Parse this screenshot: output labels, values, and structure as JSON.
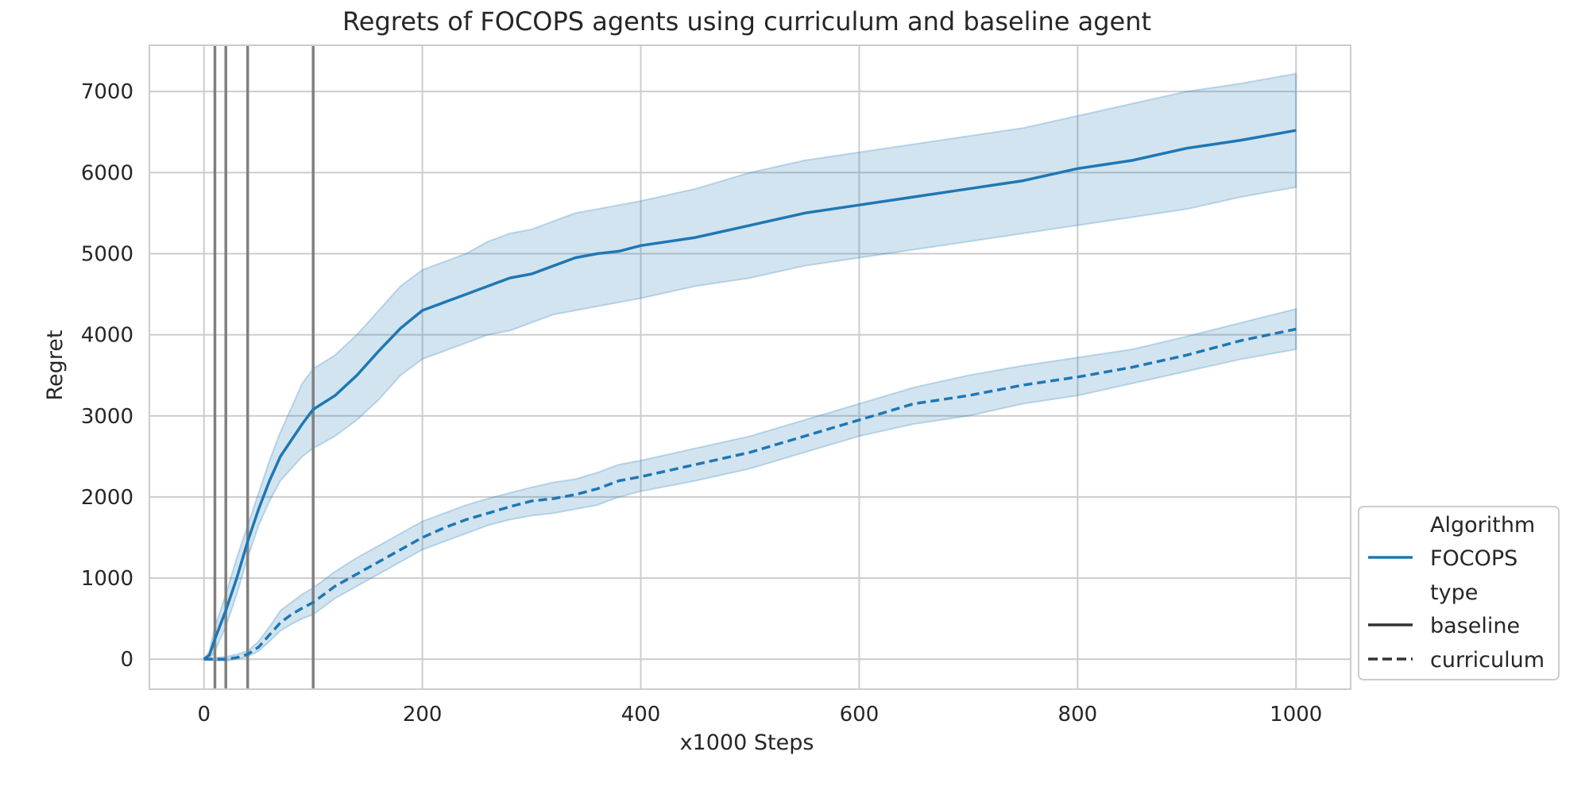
{
  "chart_data": {
    "type": "line",
    "title": "Regrets of FOCOPS agents using curriculum and baseline agent",
    "xlabel": "x1000 Steps",
    "ylabel": "Regret",
    "xlim": [
      -50,
      1050
    ],
    "ylim": [
      -370,
      7570
    ],
    "xticks": [
      0,
      200,
      400,
      600,
      800,
      1000
    ],
    "yticks": [
      0,
      1000,
      2000,
      3000,
      4000,
      5000,
      6000,
      7000
    ],
    "grid": true,
    "legend_position": "lower-right",
    "vertical_lines": [
      10,
      20,
      40,
      100
    ],
    "colors": {
      "series": "#1f77b4",
      "band": "#1f77b4",
      "vline": "#808080",
      "grid": "#cccccc",
      "legend_line": "#333333"
    },
    "legend": {
      "group1_title": "Algorithm",
      "group1_items": [
        {
          "label": "FOCOPS",
          "style": "series-solid"
        }
      ],
      "group2_title": "type",
      "group2_items": [
        {
          "label": "baseline",
          "style": "solid"
        },
        {
          "label": "curriculum",
          "style": "dashed"
        }
      ]
    },
    "series": [
      {
        "name": "baseline",
        "dash": "solid",
        "x": [
          0,
          5,
          10,
          20,
          30,
          40,
          50,
          60,
          70,
          80,
          90,
          100,
          120,
          140,
          160,
          180,
          200,
          220,
          240,
          260,
          280,
          300,
          320,
          340,
          360,
          380,
          400,
          450,
          500,
          550,
          600,
          650,
          700,
          750,
          800,
          850,
          900,
          950,
          1000
        ],
        "y": [
          0,
          50,
          250,
          600,
          1000,
          1450,
          1850,
          2200,
          2500,
          2700,
          2900,
          3080,
          3250,
          3500,
          3800,
          4080,
          4300,
          4400,
          4500,
          4600,
          4700,
          4750,
          4850,
          4950,
          5000,
          5030,
          5100,
          5200,
          5350,
          5500,
          5600,
          5700,
          5800,
          5900,
          6050,
          6150,
          6300,
          6400,
          6520
        ],
        "lower": [
          0,
          0,
          100,
          400,
          800,
          1250,
          1650,
          1950,
          2200,
          2350,
          2500,
          2600,
          2750,
          2950,
          3200,
          3500,
          3700,
          3800,
          3900,
          4000,
          4050,
          4150,
          4250,
          4300,
          4350,
          4400,
          4450,
          4600,
          4700,
          4850,
          4950,
          5050,
          5150,
          5250,
          5350,
          5450,
          5550,
          5700,
          5820
        ],
        "upper": [
          0,
          100,
          400,
          800,
          1250,
          1650,
          2050,
          2450,
          2800,
          3100,
          3400,
          3580,
          3750,
          4000,
          4300,
          4600,
          4800,
          4900,
          5000,
          5150,
          5250,
          5300,
          5400,
          5500,
          5550,
          5600,
          5650,
          5800,
          6000,
          6150,
          6250,
          6350,
          6450,
          6550,
          6700,
          6850,
          7000,
          7100,
          7220
        ]
      },
      {
        "name": "curriculum",
        "dash": "dashed",
        "x": [
          0,
          10,
          20,
          30,
          40,
          50,
          60,
          70,
          80,
          90,
          100,
          120,
          140,
          160,
          180,
          200,
          220,
          240,
          260,
          280,
          300,
          320,
          340,
          360,
          380,
          400,
          450,
          500,
          550,
          600,
          650,
          700,
          750,
          800,
          850,
          900,
          950,
          1000
        ],
        "y": [
          0,
          0,
          0,
          20,
          60,
          150,
          300,
          450,
          550,
          630,
          700,
          900,
          1050,
          1200,
          1350,
          1500,
          1620,
          1720,
          1800,
          1880,
          1950,
          1980,
          2030,
          2100,
          2200,
          2250,
          2400,
          2550,
          2750,
          2950,
          3150,
          3250,
          3380,
          3480,
          3600,
          3750,
          3930,
          4070
        ],
        "lower": [
          0,
          -20,
          -20,
          0,
          30,
          100,
          220,
          350,
          430,
          500,
          550,
          750,
          900,
          1050,
          1200,
          1350,
          1450,
          1550,
          1650,
          1720,
          1770,
          1800,
          1850,
          1900,
          2000,
          2070,
          2200,
          2350,
          2550,
          2750,
          2900,
          3000,
          3150,
          3250,
          3400,
          3550,
          3700,
          3820
        ],
        "upper": [
          0,
          20,
          30,
          60,
          100,
          220,
          400,
          600,
          700,
          800,
          880,
          1080,
          1250,
          1400,
          1550,
          1700,
          1800,
          1900,
          1980,
          2050,
          2120,
          2180,
          2220,
          2300,
          2400,
          2450,
          2600,
          2750,
          2950,
          3150,
          3350,
          3500,
          3620,
          3720,
          3820,
          3980,
          4150,
          4320
        ]
      }
    ]
  }
}
